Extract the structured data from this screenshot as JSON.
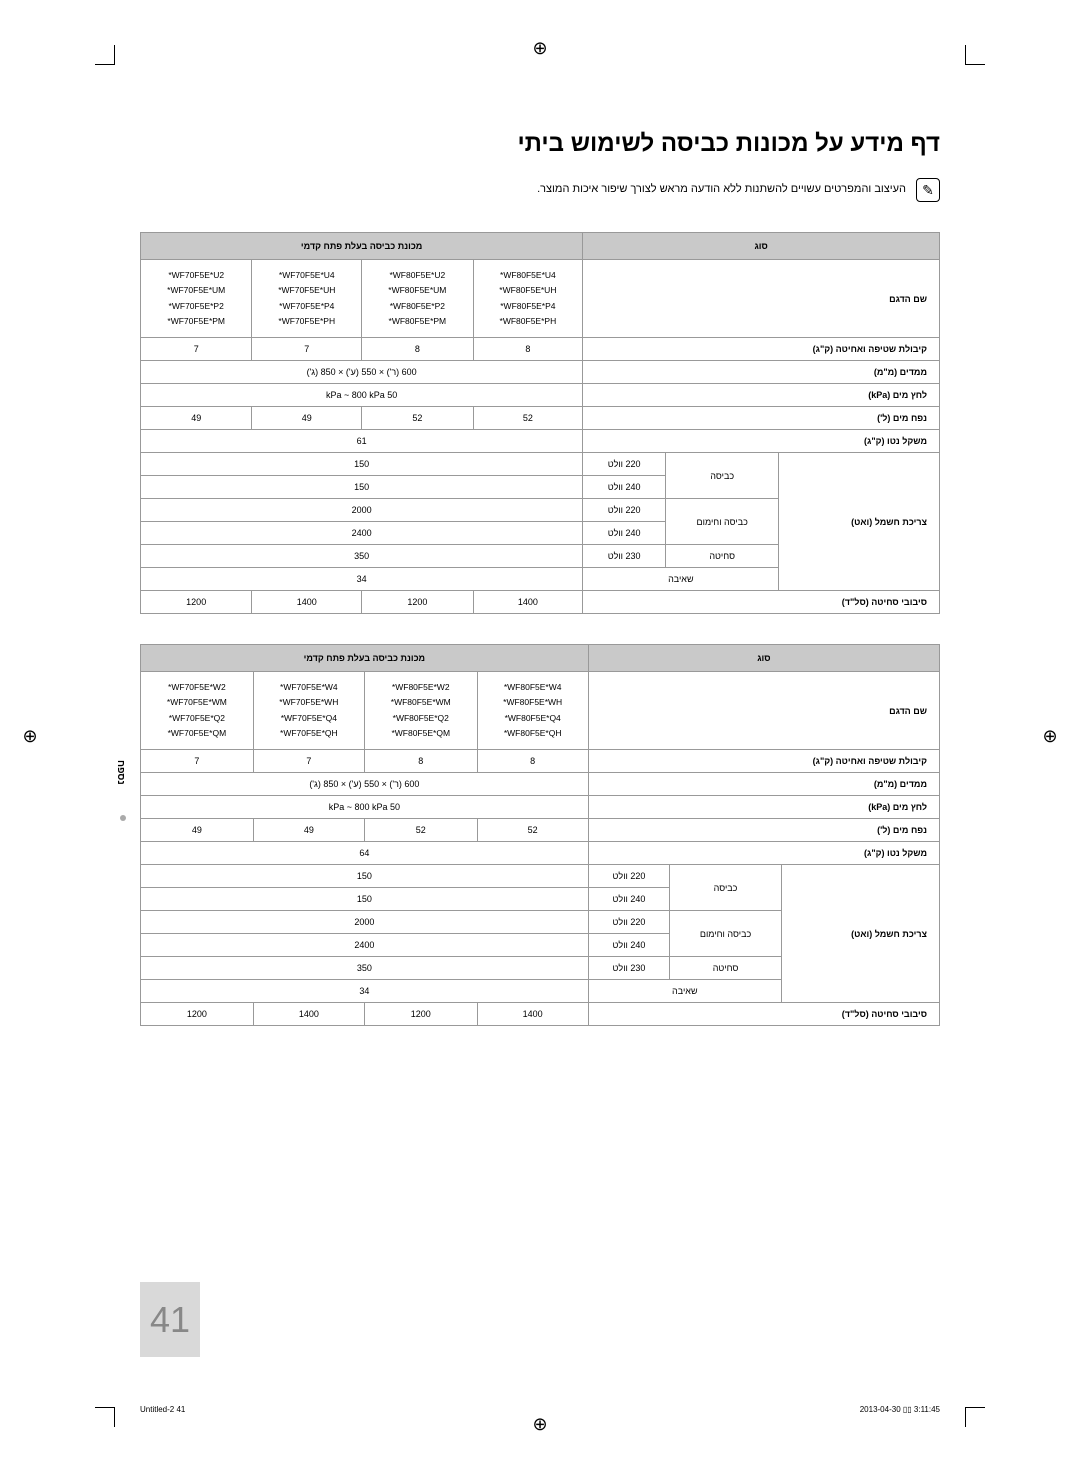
{
  "title": "דף מידע על מכונות כביסה לשימוש ביתי",
  "note": "העיצוב והמפרטים עשויים להשתנות ללא הודעה מראש לצורך שיפור איכות המוצר.",
  "pageNumber": "41",
  "sideTab": "נספח",
  "footer": {
    "left": "Untitled-2   41",
    "right": "2013-04-30   ▯▯ 3:11:45"
  },
  "headers": {
    "type": "סוג",
    "machine": "מכונת כביסה בעלת פתח קדמי",
    "modelName": "שם הדגם",
    "capacity": "קיבולת שטיפה ואחיטה (ק\"ג)",
    "dims": "ממדים (מ\"מ)",
    "pressure": "לחץ מים (kPa)",
    "volume": "נפח מים (ל')",
    "weight": "משקל נטו (ק\"ג)",
    "power": "צריכת חשמל (ואט)",
    "wash": "כביסה",
    "washHeat": "כביסה וחימום",
    "spin": "סחיטה",
    "pump": "שאיבה",
    "rpm": "סיבובי סחיטה (סל\"ד)",
    "v220": "220 וולט",
    "v240": "240 וולט",
    "v230": "230 וולט"
  },
  "common": {
    "dims": "600 (ר') × 550 (ע') × 850 (ג')",
    "pressure": "50 kPa ~ 800 kPa",
    "wash150a": "150",
    "wash150b": "150",
    "heat2000": "2000",
    "heat2400": "2400",
    "spin350": "350",
    "pump34": "34"
  },
  "t1": {
    "models": {
      "c1": "WF80F5E*U4*\nWF80F5E*UH*\nWF80F5E*P4*\nWF80F5E*PH*",
      "c2": "WF80F5E*U2*\nWF80F5E*UM*\nWF80F5E*P2*\nWF80F5E*PM*",
      "c3": "WF70F5E*U4*\nWF70F5E*UH*\nWF70F5E*P4*\nWF70F5E*PH*",
      "c4": "WF70F5E*U2*\nWF70F5E*UM*\nWF70F5E*P2*\nWF70F5E*PM*"
    },
    "cap": {
      "c1": "8",
      "c2": "8",
      "c3": "7",
      "c4": "7"
    },
    "vol": {
      "c1": "52",
      "c2": "52",
      "c3": "49",
      "c4": "49"
    },
    "weight": "61",
    "rpm": {
      "c1": "1400",
      "c2": "1200",
      "c3": "1400",
      "c4": "1200"
    }
  },
  "t2": {
    "models": {
      "c1": "WF80F5E*W4*\nWF80F5E*WH*\nWF80F5E*Q4*\nWF80F5E*QH*",
      "c2": "WF80F5E*W2*\nWF80F5E*WM*\nWF80F5E*Q2*\nWF80F5E*QM*",
      "c3": "WF70F5E*W4*\nWF70F5E*WH*\nWF70F5E*Q4*\nWF70F5E*QH*",
      "c4": "WF70F5E*W2*\nWF70F5E*WM*\nWF70F5E*Q2*\nWF70F5E*QM*"
    },
    "cap": {
      "c1": "8",
      "c2": "8",
      "c3": "7",
      "c4": "7"
    },
    "vol": {
      "c1": "52",
      "c2": "52",
      "c3": "49",
      "c4": "49"
    },
    "weight": "64",
    "rpm": {
      "c1": "1400",
      "c2": "1200",
      "c3": "1400",
      "c4": "1200"
    }
  }
}
